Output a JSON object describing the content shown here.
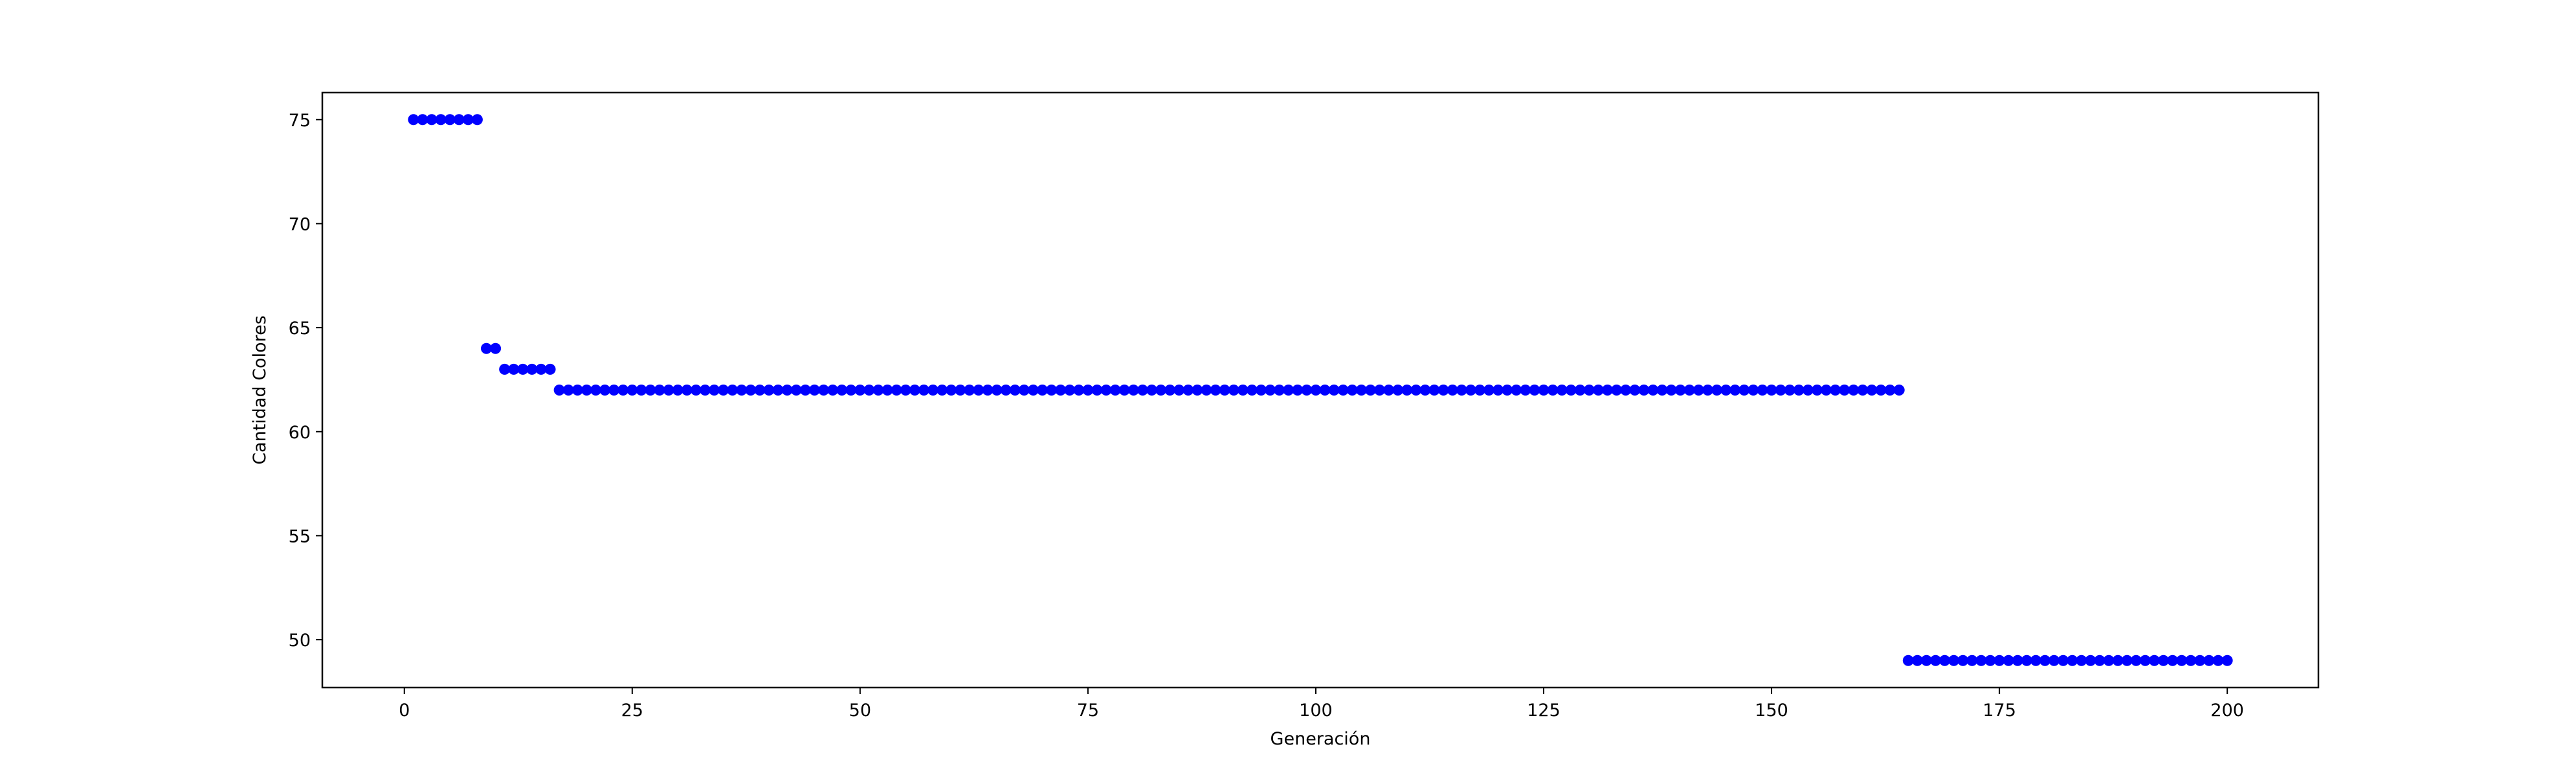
{
  "chart_data": {
    "type": "scatter",
    "title": "",
    "xlabel": "Generación",
    "ylabel": "Cantidad Colores",
    "xlim": [
      -9,
      210
    ],
    "ylim": [
      47.7,
      76.3
    ],
    "xticks": [
      0,
      25,
      50,
      75,
      100,
      125,
      150,
      175,
      200
    ],
    "yticks": [
      50,
      55,
      60,
      65,
      70,
      75
    ],
    "grid": false,
    "legend": "none",
    "marker_color": "#0000ff",
    "marker": "circle",
    "series": [
      {
        "segments": [
          {
            "x_start": 1,
            "x_end": 8,
            "y": 75
          },
          {
            "x_start": 9,
            "x_end": 10,
            "y": 64
          },
          {
            "x_start": 11,
            "x_end": 16,
            "y": 63
          },
          {
            "x_start": 17,
            "x_end": 164,
            "y": 62
          },
          {
            "x_start": 165,
            "x_end": 200,
            "y": 49
          }
        ]
      }
    ]
  }
}
